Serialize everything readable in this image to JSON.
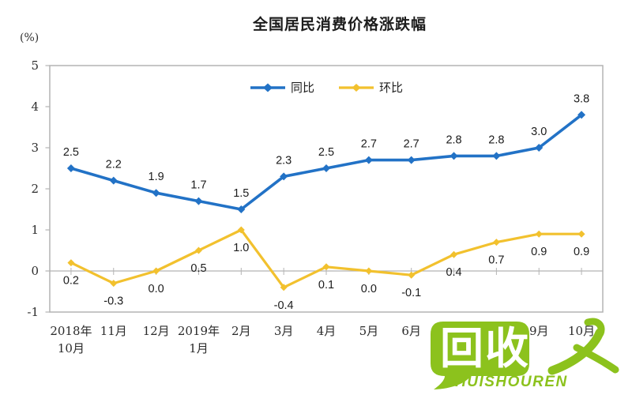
{
  "title": "全国居民消费价格涨跌幅",
  "y_axis_unit": "(%)",
  "colors": {
    "series_yoy_blue": "#2272C6",
    "series_mom_yellow": "#F2C12E",
    "axis_gray": "#B4B4B4",
    "watermark_green": "#8CC21D"
  },
  "watermark": {
    "bubble_text": "回收",
    "figure": "人",
    "caption": "HUISHOUREN",
    "color": "#8CC21D"
  },
  "chart_data": {
    "type": "line",
    "title": "全国居民消费价格涨跌幅",
    "y_unit": "(%)",
    "ylim": [
      -1,
      5
    ],
    "y_ticks": [
      5,
      4,
      3,
      2,
      1,
      0,
      -1
    ],
    "grid": false,
    "legend_position": "top-center-inside",
    "categories": [
      [
        "2018年",
        "10月"
      ],
      [
        "11月"
      ],
      [
        "12月"
      ],
      [
        "2019年",
        "1月"
      ],
      [
        "2月"
      ],
      [
        "3月"
      ],
      [
        "4月"
      ],
      [
        "5月"
      ],
      [
        "6月"
      ],
      [
        "7月"
      ],
      [
        "8月"
      ],
      [
        "9月"
      ],
      [
        "10月"
      ]
    ],
    "series": [
      {
        "name": "同比",
        "color": "#2272C6",
        "marker": "diamond",
        "label_position": "above",
        "values": [
          2.5,
          2.2,
          1.9,
          1.7,
          1.5,
          2.3,
          2.5,
          2.7,
          2.7,
          2.8,
          2.8,
          3.0,
          3.8
        ]
      },
      {
        "name": "环比",
        "color": "#F2C12E",
        "marker": "diamond",
        "label_position": "below",
        "values": [
          0.2,
          -0.3,
          0.0,
          0.5,
          1.0,
          -0.4,
          0.1,
          0.0,
          -0.1,
          0.4,
          0.7,
          0.9,
          0.9
        ]
      }
    ]
  }
}
